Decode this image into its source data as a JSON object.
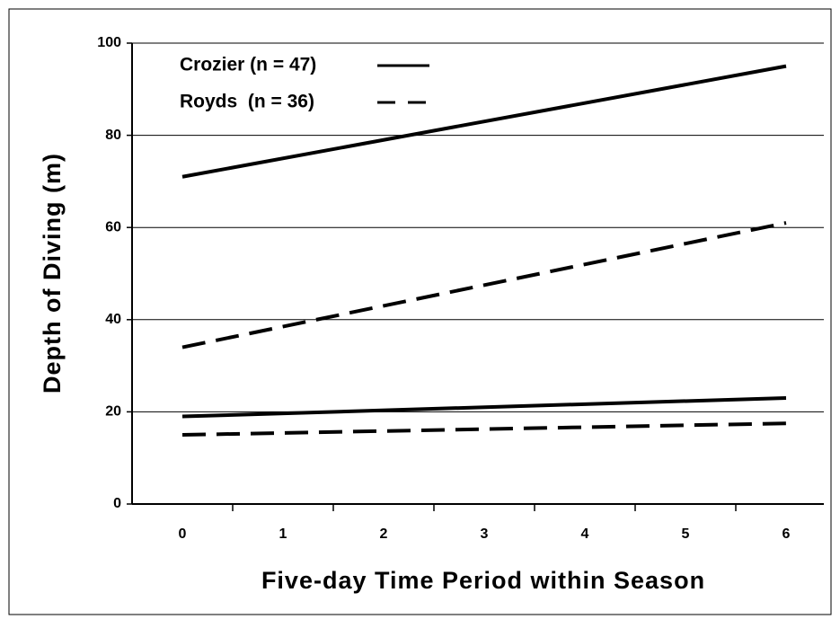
{
  "chart_data": {
    "type": "line",
    "x_label": "Five-day Time Period within Season",
    "y_label": "Depth of Diving (m)",
    "x": [
      0,
      6
    ],
    "series": [
      {
        "name": "Crozier (n = 47)",
        "color": "#000000",
        "dashed": false,
        "values": [
          71,
          95
        ]
      },
      {
        "name": "Royds  (n = 36)",
        "color": "#000000",
        "dashed": true,
        "values": [
          34,
          61
        ]
      },
      {
        "color": "#000000",
        "dashed": false,
        "values": [
          19,
          23
        ]
      },
      {
        "color": "#000000",
        "dashed": true,
        "values": [
          15,
          17.5
        ]
      }
    ],
    "xlim": [
      -0.5,
      6.375
    ],
    "xticks": [
      0,
      1,
      2,
      3,
      4,
      5,
      6
    ],
    "ylim": [
      0,
      100
    ],
    "yticks": [
      0,
      20,
      40,
      60,
      80,
      100
    ],
    "grid": true,
    "legend": "top-left"
  }
}
